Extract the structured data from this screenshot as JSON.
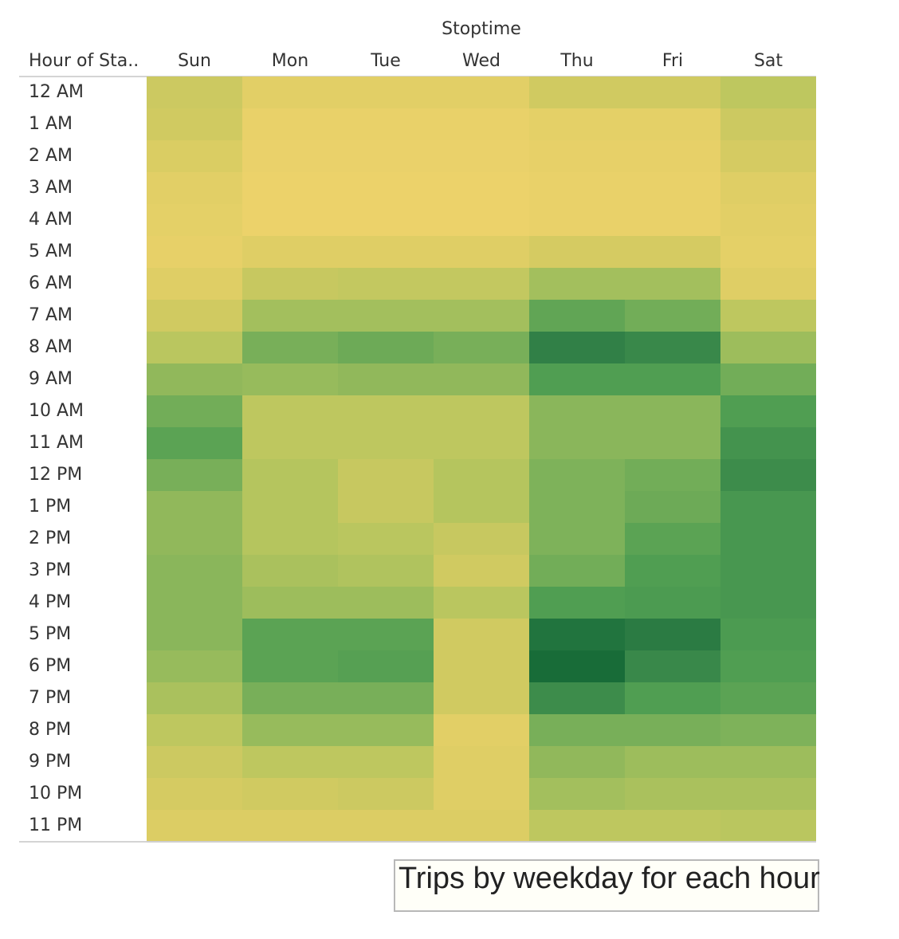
{
  "chart_data": {
    "type": "heatmap",
    "title": "Trips by weekday for each hour",
    "column_header": "Stoptime",
    "row_header": "Hour of Sta..",
    "columns": [
      "Sun",
      "Mon",
      "Tue",
      "Wed",
      "Thu",
      "Fri",
      "Sat"
    ],
    "rows": [
      "12 AM",
      "1 AM",
      "2 AM",
      "3 AM",
      "4 AM",
      "5 AM",
      "6 AM",
      "7 AM",
      "8 AM",
      "9 AM",
      "10 AM",
      "11 AM",
      "12 PM",
      "1 PM",
      "2 PM",
      "3 PM",
      "4 PM",
      "5 PM",
      "6 PM",
      "7 PM",
      "8 PM",
      "9 PM",
      "10 PM",
      "11 PM"
    ],
    "values": [
      [
        0.22,
        0.1,
        0.1,
        0.1,
        0.2,
        0.2,
        0.28
      ],
      [
        0.2,
        0.05,
        0.05,
        0.05,
        0.08,
        0.08,
        0.22
      ],
      [
        0.15,
        0.04,
        0.04,
        0.04,
        0.06,
        0.06,
        0.18
      ],
      [
        0.1,
        0.03,
        0.03,
        0.03,
        0.05,
        0.05,
        0.12
      ],
      [
        0.08,
        0.03,
        0.03,
        0.03,
        0.05,
        0.05,
        0.1
      ],
      [
        0.06,
        0.12,
        0.12,
        0.12,
        0.18,
        0.18,
        0.08
      ],
      [
        0.12,
        0.24,
        0.26,
        0.26,
        0.38,
        0.38,
        0.12
      ],
      [
        0.2,
        0.38,
        0.38,
        0.38,
        0.6,
        0.54,
        0.28
      ],
      [
        0.3,
        0.52,
        0.56,
        0.52,
        0.82,
        0.78,
        0.4
      ],
      [
        0.44,
        0.42,
        0.44,
        0.44,
        0.66,
        0.66,
        0.54
      ],
      [
        0.54,
        0.28,
        0.28,
        0.28,
        0.46,
        0.46,
        0.66
      ],
      [
        0.62,
        0.28,
        0.28,
        0.28,
        0.46,
        0.46,
        0.72
      ],
      [
        0.52,
        0.32,
        0.24,
        0.32,
        0.5,
        0.54,
        0.76
      ],
      [
        0.44,
        0.32,
        0.24,
        0.32,
        0.5,
        0.56,
        0.7
      ],
      [
        0.44,
        0.32,
        0.3,
        0.24,
        0.5,
        0.62,
        0.7
      ],
      [
        0.46,
        0.36,
        0.34,
        0.2,
        0.54,
        0.66,
        0.7
      ],
      [
        0.46,
        0.4,
        0.4,
        0.3,
        0.66,
        0.68,
        0.7
      ],
      [
        0.46,
        0.62,
        0.62,
        0.2,
        0.92,
        0.86,
        0.68
      ],
      [
        0.42,
        0.62,
        0.64,
        0.2,
        0.98,
        0.78,
        0.66
      ],
      [
        0.36,
        0.52,
        0.52,
        0.2,
        0.76,
        0.66,
        0.62
      ],
      [
        0.28,
        0.42,
        0.42,
        0.1,
        0.52,
        0.52,
        0.5
      ],
      [
        0.22,
        0.28,
        0.28,
        0.12,
        0.44,
        0.4,
        0.4
      ],
      [
        0.18,
        0.2,
        0.22,
        0.12,
        0.38,
        0.36,
        0.36
      ],
      [
        0.14,
        0.14,
        0.14,
        0.14,
        0.28,
        0.28,
        0.3
      ]
    ],
    "color_scale": [
      "#f0d36c",
      "#d8cc62",
      "#b2c45e",
      "#7eb25a",
      "#4e9d52",
      "#2f7e46",
      "#156a36"
    ],
    "legend": "none",
    "grid": false
  }
}
